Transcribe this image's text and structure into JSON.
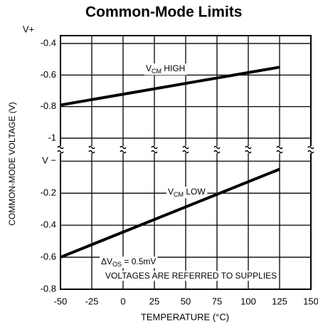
{
  "chart_data": [
    {
      "type": "line",
      "title": "Common-Mode Limits",
      "ylabel": "COMMON-MODE VOLTAGE (V)",
      "top_label": "V+",
      "xlim": [
        -50,
        150
      ],
      "xticks": [
        -50,
        -25,
        0,
        25,
        50,
        75,
        100,
        125,
        150
      ],
      "ylim": [
        -1.05,
        -0.35
      ],
      "yticks": [
        -0.4,
        -0.6,
        -0.8,
        -1.0
      ],
      "grid": true,
      "series": [
        {
          "name": "HIGH",
          "color": "#000000",
          "x": [
            -50,
            125
          ],
          "values": [
            -0.79,
            -0.55
          ]
        }
      ],
      "annotations": [
        {
          "v": "V",
          "sub": "CM",
          "text": " HIGH"
        }
      ]
    },
    {
      "type": "line",
      "xlabel": "TEMPERATURE (°C)",
      "xlim": [
        -50,
        150
      ],
      "xticks": [
        -50,
        -25,
        0,
        25,
        50,
        75,
        100,
        125,
        150
      ],
      "ylim": [
        -0.8,
        0.05
      ],
      "yticks": [
        {
          "value": 0,
          "label": "V −"
        },
        -0.2,
        -0.4,
        -0.6,
        -0.8
      ],
      "grid": true,
      "series": [
        {
          "name": "LOW",
          "color": "#000000",
          "x": [
            -50,
            125
          ],
          "values": [
            -0.6,
            -0.05
          ]
        }
      ],
      "annotations": [
        {
          "v": "V",
          "sub": "CM",
          "text": " LOW"
        },
        {
          "v": "ΔV",
          "sub": "OS",
          "text": " = 0.5mV"
        },
        {
          "text": "VOLTAGES ARE REFERRED TO SUPPLIES"
        }
      ]
    }
  ]
}
